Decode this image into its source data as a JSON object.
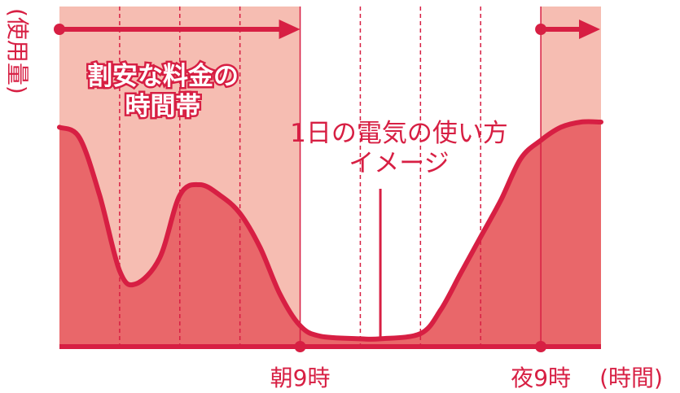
{
  "chart_data": {
    "type": "area",
    "title": "",
    "y_axis_label": "(使用量)",
    "x_axis_label": "(時間)",
    "x_ticks": [
      {
        "x": 0,
        "label": ""
      },
      {
        "x": 9,
        "label": "朝9時"
      },
      {
        "x": 21,
        "label": "夜9時"
      }
    ],
    "xlim": [
      -3,
      24
    ],
    "ylim": [
      0,
      1
    ],
    "grid": {
      "vertical_dashed_every_hours": 3
    },
    "discount_periods": [
      {
        "from": -3,
        "to": 9
      },
      {
        "from": 21,
        "to": 24
      }
    ],
    "discount_label_lines": [
      "割安な料金の",
      "時間帯"
    ],
    "usage_label_lines": [
      "1日の電気の使い方",
      "イメージ"
    ],
    "usage_curve": [
      {
        "x": -3,
        "y": 0.84
      },
      {
        "x": -2,
        "y": 0.8
      },
      {
        "x": -1,
        "y": 0.58
      },
      {
        "x": 0,
        "y": 0.29
      },
      {
        "x": 0.8,
        "y": 0.24
      },
      {
        "x": 2,
        "y": 0.34
      },
      {
        "x": 3,
        "y": 0.58
      },
      {
        "x": 4,
        "y": 0.62
      },
      {
        "x": 5,
        "y": 0.58
      },
      {
        "x": 6,
        "y": 0.51
      },
      {
        "x": 7,
        "y": 0.38
      },
      {
        "x": 8,
        "y": 0.2
      },
      {
        "x": 9,
        "y": 0.08
      },
      {
        "x": 10,
        "y": 0.04
      },
      {
        "x": 12,
        "y": 0.03
      },
      {
        "x": 13,
        "y": 0.03
      },
      {
        "x": 15,
        "y": 0.05
      },
      {
        "x": 16,
        "y": 0.14
      },
      {
        "x": 17,
        "y": 0.28
      },
      {
        "x": 18,
        "y": 0.42
      },
      {
        "x": 19,
        "y": 0.56
      },
      {
        "x": 20,
        "y": 0.72
      },
      {
        "x": 21,
        "y": 0.79
      },
      {
        "x": 22,
        "y": 0.84
      },
      {
        "x": 23,
        "y": 0.86
      },
      {
        "x": 24,
        "y": 0.86
      }
    ],
    "pointer_x": 13,
    "colors": {
      "accent": "#d71f43",
      "discount_band": "#f6bdb2",
      "area_fill": "#e9676a"
    }
  }
}
